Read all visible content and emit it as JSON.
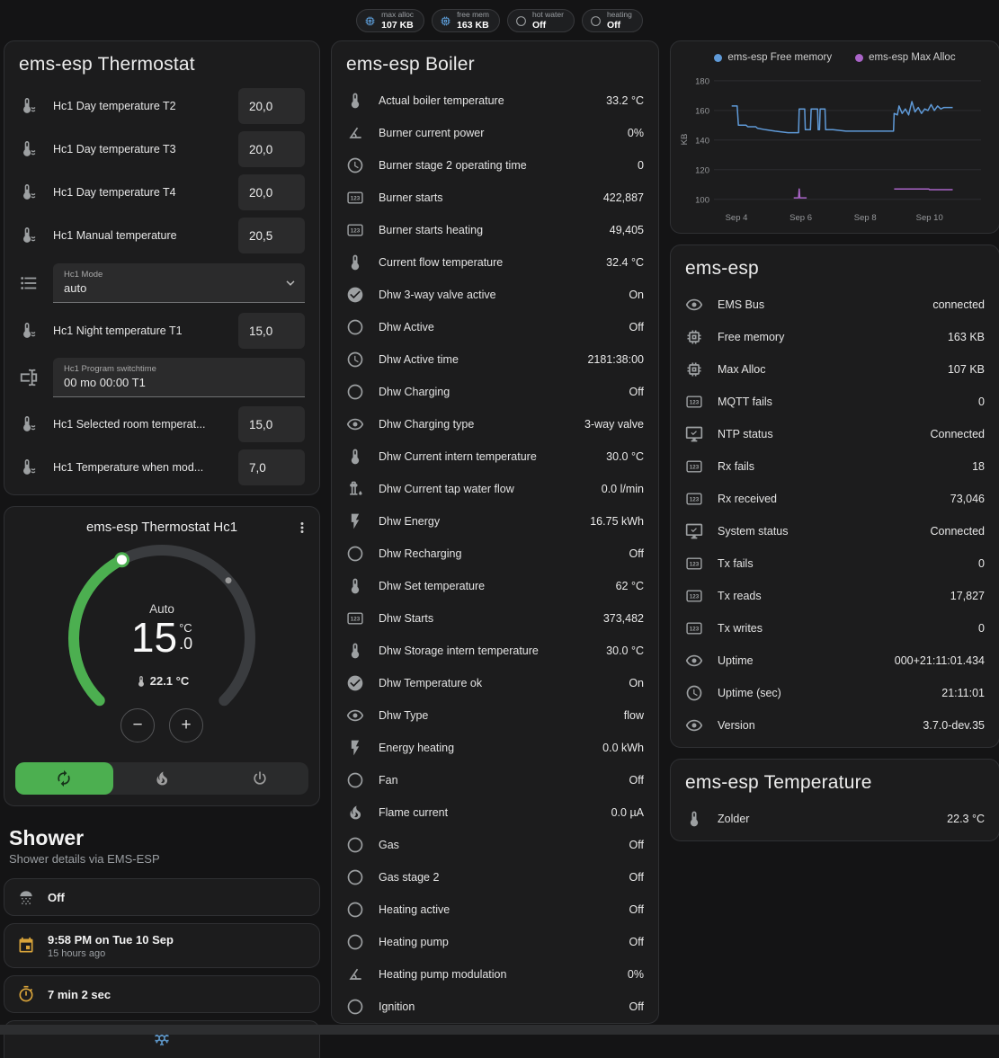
{
  "colors": {
    "green": "#4caf50",
    "amber": "#d9a43a",
    "blue": "#5b9bd5",
    "snowflake_blue": "#5e97c9",
    "chart_free": "#5f9ad8",
    "chart_alloc": "#aa64c8"
  },
  "badges": [
    {
      "icon": "memory",
      "icon_color": "blue",
      "label": "max alloc",
      "value": "107 KB"
    },
    {
      "icon": "memory",
      "icon_color": "blue",
      "label": "free mem",
      "value": "163 KB"
    },
    {
      "icon": "circle-outline",
      "icon_color": "gray",
      "label": "hot water",
      "value": "Off"
    },
    {
      "icon": "circle-outline",
      "icon_color": "gray",
      "label": "heating",
      "value": "Off"
    }
  ],
  "thermostat_card": {
    "title": "ems-esp Thermostat",
    "rows": [
      {
        "type": "number",
        "icon": "thermometer-water",
        "name": "Hc1 Day temperature T2",
        "value": "20,0"
      },
      {
        "type": "number",
        "icon": "thermometer-water",
        "name": "Hc1 Day temperature T3",
        "value": "20,0"
      },
      {
        "type": "number",
        "icon": "thermometer-water",
        "name": "Hc1 Day temperature T4",
        "value": "20,0"
      },
      {
        "type": "number",
        "icon": "thermometer-water",
        "name": "Hc1 Manual temperature",
        "value": "20,5"
      },
      {
        "type": "select",
        "icon": "format-list",
        "label": "Hc1 Mode",
        "value": "auto"
      },
      {
        "type": "number",
        "icon": "thermometer-water",
        "name": "Hc1 Night temperature T1",
        "value": "15,0"
      },
      {
        "type": "text",
        "icon": "form-textbox",
        "label": "Hc1 Program switchtime",
        "value": "00 mo 00:00 T1"
      },
      {
        "type": "number",
        "icon": "thermometer-water",
        "name": "Hc1 Selected room temperat...",
        "value": "15,0"
      },
      {
        "type": "number",
        "icon": "thermometer-water",
        "name": "Hc1 Temperature when mod...",
        "value": "7,0"
      }
    ]
  },
  "hc1_card": {
    "title": "ems-esp Thermostat Hc1",
    "mode_label": "Auto",
    "target_int": "15",
    "target_dec": ".0",
    "unit": "°C",
    "current_temp": "22.1 °C",
    "modes": [
      {
        "name": "auto",
        "icon": "autorenew",
        "active": true
      },
      {
        "name": "heat",
        "icon": "fire",
        "active": false
      },
      {
        "name": "off",
        "icon": "power",
        "active": false
      }
    ]
  },
  "shower": {
    "title": "Shower",
    "subtitle": "Shower details via EMS-ESP",
    "cards": [
      {
        "icon": "shower-head",
        "color": "gray",
        "primary": "Off"
      },
      {
        "icon": "calendar",
        "color": "amber",
        "primary": "9:58 PM on Tue 10 Sep",
        "secondary": "15 hours ago"
      },
      {
        "icon": "timer",
        "color": "amber",
        "primary": "7 min 2 sec"
      },
      {
        "icon": "snowflake",
        "color": "blue",
        "partial": true
      }
    ]
  },
  "boiler_card": {
    "title": "ems-esp Boiler",
    "rows": [
      {
        "icon": "thermometer",
        "name": "Actual boiler temperature",
        "value": "33.2 °C"
      },
      {
        "icon": "angle",
        "name": "Burner current power",
        "value": "0%"
      },
      {
        "icon": "clock",
        "name": "Burner stage 2 operating time",
        "value": "0"
      },
      {
        "icon": "counter",
        "name": "Burner starts",
        "value": "422,887"
      },
      {
        "icon": "counter",
        "name": "Burner starts heating",
        "value": "49,405"
      },
      {
        "icon": "thermometer",
        "name": "Current flow temperature",
        "value": "32.4 °C"
      },
      {
        "icon": "check-circle",
        "name": "Dhw 3-way valve active",
        "value": "On"
      },
      {
        "icon": "circle-outline",
        "name": "Dhw Active",
        "value": "Off"
      },
      {
        "icon": "clock",
        "name": "Dhw Active time",
        "value": "2181:38:00"
      },
      {
        "icon": "circle-outline",
        "name": "Dhw Charging",
        "value": "Off"
      },
      {
        "icon": "eye",
        "name": "Dhw Charging type",
        "value": "3-way valve"
      },
      {
        "icon": "thermometer",
        "name": "Dhw Current intern temperature",
        "value": "30.0 °C"
      },
      {
        "icon": "water-pump",
        "name": "Dhw Current tap water flow",
        "value": "0.0 l/min"
      },
      {
        "icon": "flash",
        "name": "Dhw Energy",
        "value": "16.75 kWh"
      },
      {
        "icon": "circle-outline",
        "name": "Dhw Recharging",
        "value": "Off"
      },
      {
        "icon": "thermometer",
        "name": "Dhw Set temperature",
        "value": "62 °C"
      },
      {
        "icon": "counter",
        "name": "Dhw Starts",
        "value": "373,482"
      },
      {
        "icon": "thermometer",
        "name": "Dhw Storage intern temperature",
        "value": "30.0 °C"
      },
      {
        "icon": "check-circle",
        "name": "Dhw Temperature ok",
        "value": "On"
      },
      {
        "icon": "eye",
        "name": "Dhw Type",
        "value": "flow"
      },
      {
        "icon": "flash",
        "name": "Energy heating",
        "value": "0.0 kWh"
      },
      {
        "icon": "circle-outline",
        "name": "Fan",
        "value": "Off"
      },
      {
        "icon": "fire",
        "name": "Flame current",
        "value": "0.0 µA"
      },
      {
        "icon": "circle-outline",
        "name": "Gas",
        "value": "Off"
      },
      {
        "icon": "circle-outline",
        "name": "Gas stage 2",
        "value": "Off"
      },
      {
        "icon": "circle-outline",
        "name": "Heating active",
        "value": "Off"
      },
      {
        "icon": "circle-outline",
        "name": "Heating pump",
        "value": "Off"
      },
      {
        "icon": "angle",
        "name": "Heating pump modulation",
        "value": "0%"
      },
      {
        "icon": "circle-outline",
        "name": "Ignition",
        "value": "Off"
      }
    ]
  },
  "emsesp_card": {
    "title": "ems-esp",
    "rows": [
      {
        "icon": "eye",
        "name": "EMS Bus",
        "value": "connected"
      },
      {
        "icon": "memory",
        "name": "Free memory",
        "value": "163 KB"
      },
      {
        "icon": "memory",
        "name": "Max Alloc",
        "value": "107 KB"
      },
      {
        "icon": "counter",
        "name": "MQTT fails",
        "value": "0"
      },
      {
        "icon": "monitor-check",
        "name": "NTP status",
        "value": "Connected"
      },
      {
        "icon": "counter",
        "name": "Rx fails",
        "value": "18"
      },
      {
        "icon": "counter",
        "name": "Rx received",
        "value": "73,046"
      },
      {
        "icon": "monitor-check",
        "name": "System status",
        "value": "Connected"
      },
      {
        "icon": "counter",
        "name": "Tx fails",
        "value": "0"
      },
      {
        "icon": "counter",
        "name": "Tx reads",
        "value": "17,827"
      },
      {
        "icon": "counter",
        "name": "Tx writes",
        "value": "0"
      },
      {
        "icon": "eye",
        "name": "Uptime",
        "value": "000+21:11:01.434"
      },
      {
        "icon": "clock",
        "name": "Uptime (sec)",
        "value": "21:11:01"
      },
      {
        "icon": "eye",
        "name": "Version",
        "value": "3.7.0-dev.35"
      }
    ]
  },
  "temperature_card": {
    "title": "ems-esp Temperature",
    "rows": [
      {
        "icon": "thermometer",
        "name": "Zolder",
        "value": "22.3 °C"
      }
    ]
  },
  "chart_data": {
    "type": "line",
    "title": "",
    "ylabel": "KB",
    "ylim": [
      95,
      186
    ],
    "yticks": [
      100,
      120,
      140,
      160,
      180
    ],
    "xlim": [
      3.3,
      11.6
    ],
    "xticks": [
      {
        "x": 4,
        "label": "Sep 4"
      },
      {
        "x": 6,
        "label": "Sep 6"
      },
      {
        "x": 8,
        "label": "Sep 8"
      },
      {
        "x": 10,
        "label": "Sep 10"
      }
    ],
    "grid": true,
    "legend_position": "top",
    "series": [
      {
        "name": "ems-esp Free memory",
        "color": "#5f9ad8",
        "segments": [
          [
            [
              3.85,
              163
            ],
            [
              4.02,
              163
            ],
            [
              4.06,
              150
            ],
            [
              4.3,
              150
            ],
            [
              4.35,
              149
            ],
            [
              4.6,
              149
            ],
            [
              4.65,
              148
            ],
            [
              4.9,
              147
            ],
            [
              5.2,
              146
            ],
            [
              5.6,
              145
            ],
            [
              5.93,
              145
            ],
            [
              5.95,
              161
            ],
            [
              6.12,
              161
            ],
            [
              6.14,
              147
            ],
            [
              6.3,
              147
            ],
            [
              6.32,
              161
            ],
            [
              6.52,
              161
            ],
            [
              6.54,
              147
            ],
            [
              6.58,
              147
            ],
            [
              6.6,
              161
            ],
            [
              6.75,
              161
            ],
            [
              6.77,
              147
            ],
            [
              7.0,
              147
            ],
            [
              7.4,
              146
            ],
            [
              8.0,
              146
            ],
            [
              8.6,
              146
            ],
            [
              8.88,
              146
            ],
            [
              8.9,
              158
            ],
            [
              9.0,
              157
            ],
            [
              9.05,
              163
            ],
            [
              9.15,
              158
            ],
            [
              9.25,
              161
            ],
            [
              9.35,
              157
            ],
            [
              9.45,
              166
            ],
            [
              9.55,
              159
            ],
            [
              9.65,
              162
            ],
            [
              9.75,
              158
            ],
            [
              9.85,
              161
            ],
            [
              9.95,
              160
            ],
            [
              10.05,
              164
            ],
            [
              10.15,
              160
            ],
            [
              10.25,
              163
            ],
            [
              10.35,
              161
            ],
            [
              10.45,
              162
            ],
            [
              10.6,
              162
            ],
            [
              10.72,
              162
            ]
          ]
        ]
      },
      {
        "name": "ems-esp Max Alloc",
        "color": "#aa64c8",
        "segments": [
          [
            [
              5.78,
              101
            ],
            [
              5.93,
              101
            ],
            [
              5.95,
              107
            ],
            [
              5.97,
              101
            ],
            [
              6.18,
              101
            ]
          ],
          [
            [
              8.9,
              107
            ],
            [
              9.98,
              107
            ],
            [
              10.0,
              106.5
            ],
            [
              10.72,
              106.5
            ]
          ]
        ]
      }
    ]
  }
}
